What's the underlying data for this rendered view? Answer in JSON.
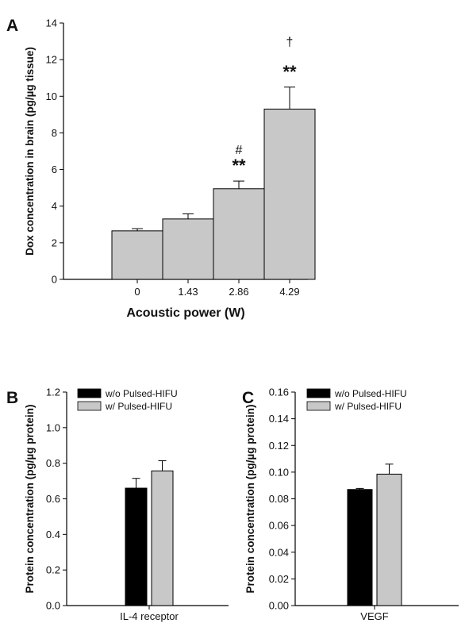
{
  "chart_data": [
    {
      "panel": "A",
      "type": "bar",
      "categories": [
        "0",
        "1.43",
        "2.86",
        "4.29"
      ],
      "values": [
        2.65,
        3.3,
        4.95,
        9.3
      ],
      "errors": [
        0.12,
        0.28,
        0.42,
        1.2
      ],
      "annotations": [
        {
          "category": "2.86",
          "lines": [
            "#",
            "**"
          ]
        },
        {
          "category": "4.29",
          "lines": [
            "†",
            "**"
          ]
        }
      ],
      "title": "",
      "xlabel": "Acoustic power (W)",
      "ylabel": "Dox concentration in brain (pg/µg tissue)",
      "ylim": [
        0,
        14
      ],
      "yticks": [
        0,
        2,
        4,
        6,
        8,
        10,
        12,
        14
      ],
      "yticklabels": [
        "0",
        "2",
        "4",
        "6",
        "8",
        "10",
        "12",
        "14"
      ],
      "bar_color": "#c8c8c8",
      "grid": false,
      "legend": "none"
    },
    {
      "panel": "B",
      "type": "bar",
      "categories": [
        "IL-4 receptor"
      ],
      "series": [
        {
          "name": "w/o Pulsed-HIFU",
          "values": [
            0.66
          ],
          "errors": [
            0.055
          ],
          "color": "#000000"
        },
        {
          "name": "w/ Pulsed-HIFU",
          "values": [
            0.757
          ],
          "errors": [
            0.057
          ],
          "color": "#c8c8c8"
        }
      ],
      "title": "",
      "xlabel": "",
      "ylabel": "Protein concentration (pg/µg protein)",
      "ylim": [
        0,
        1.2
      ],
      "yticks": [
        0,
        0.2,
        0.4,
        0.6,
        0.8,
        1.0,
        1.2
      ],
      "yticklabels": [
        "0.0",
        "0.2",
        "0.4",
        "0.6",
        "0.8",
        "1.0",
        "1.2"
      ],
      "grid": false,
      "legend": "top-left"
    },
    {
      "panel": "C",
      "type": "bar",
      "categories": [
        "VEGF"
      ],
      "series": [
        {
          "name": "w/o Pulsed-HIFU",
          "values": [
            0.087
          ],
          "errors": [
            0.0008
          ],
          "color": "#000000"
        },
        {
          "name": "w/ Pulsed-HIFU",
          "values": [
            0.0985
          ],
          "errors": [
            0.0075
          ],
          "color": "#c8c8c8"
        }
      ],
      "title": "",
      "xlabel": "",
      "ylabel": "Protein concentration (pg/µg protein)",
      "ylim": [
        0,
        0.16
      ],
      "yticks": [
        0,
        0.02,
        0.04,
        0.06,
        0.08,
        0.1,
        0.12,
        0.14,
        0.16
      ],
      "yticklabels": [
        "0.00",
        "0.02",
        "0.04",
        "0.06",
        "0.08",
        "0.10",
        "0.12",
        "0.14",
        "0.16"
      ],
      "grid": false,
      "legend": "top-left"
    }
  ]
}
